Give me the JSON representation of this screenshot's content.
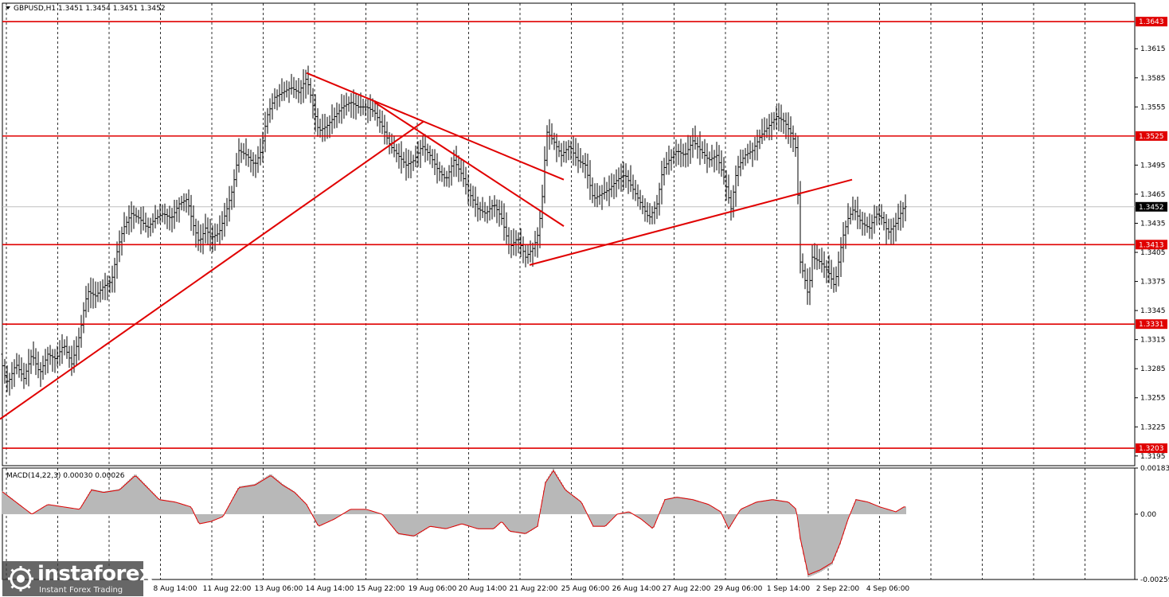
{
  "chart_data": {
    "type": "candlestick",
    "title": "GBPUSD,H1  1.3451 1.3454 1.3451 1.3452",
    "current_price": 1.3452,
    "ylim": [
      1.3185,
      1.3662
    ],
    "y_ticks": [
      "1.3615",
      "1.3585",
      "1.3555",
      "1.3495",
      "1.3465",
      "1.3435",
      "1.3405",
      "1.3375",
      "1.3345",
      "1.3315",
      "1.3285",
      "1.3255",
      "1.3225",
      "1.3195"
    ],
    "x_ticks": [
      "8 Aug 14:00",
      "11 Aug 22:00",
      "13 Aug 06:00",
      "14 Aug 14:00",
      "15 Aug 22:00",
      "19 Aug 06:00",
      "20 Aug 14:00",
      "21 Aug 22:00",
      "25 Aug 06:00",
      "26 Aug 14:00",
      "27 Aug 22:00",
      "29 Aug 06:00",
      "1 Sep 14:00",
      "2 Sep 22:00",
      "4 Sep 06:00"
    ],
    "levels": [
      {
        "value": 1.3643,
        "label": "1.3643"
      },
      {
        "value": 1.3525,
        "label": "1.3525"
      },
      {
        "value": 1.3413,
        "label": "1.3413"
      },
      {
        "value": 1.3331,
        "label": "1.3331"
      },
      {
        "value": 1.3203,
        "label": "1.3203"
      }
    ],
    "price_path": [
      [
        0,
        1.33
      ],
      [
        5,
        1.328
      ],
      [
        10,
        1.327
      ],
      [
        20,
        1.329
      ],
      [
        30,
        1.3275
      ],
      [
        40,
        1.33
      ],
      [
        50,
        1.328
      ],
      [
        60,
        1.33
      ],
      [
        70,
        1.3295
      ],
      [
        80,
        1.331
      ],
      [
        90,
        1.329
      ],
      [
        100,
        1.332
      ],
      [
        105,
        1.3345
      ],
      [
        110,
        1.3365
      ],
      [
        120,
        1.336
      ],
      [
        130,
        1.337
      ],
      [
        140,
        1.3375
      ],
      [
        148,
        1.341
      ],
      [
        155,
        1.343
      ],
      [
        165,
        1.3445
      ],
      [
        175,
        1.344
      ],
      [
        185,
        1.343
      ],
      [
        195,
        1.344
      ],
      [
        205,
        1.3445
      ],
      [
        215,
        1.344
      ],
      [
        225,
        1.3455
      ],
      [
        235,
        1.346
      ],
      [
        242,
        1.3435
      ],
      [
        250,
        1.3415
      ],
      [
        258,
        1.343
      ],
      [
        265,
        1.342
      ],
      [
        275,
        1.3425
      ],
      [
        285,
        1.345
      ],
      [
        292,
        1.347
      ],
      [
        300,
        1.351
      ],
      [
        310,
        1.3505
      ],
      [
        320,
        1.3495
      ],
      [
        328,
        1.351
      ],
      [
        335,
        1.3545
      ],
      [
        345,
        1.3565
      ],
      [
        355,
        1.357
      ],
      [
        365,
        1.3575
      ],
      [
        375,
        1.357
      ],
      [
        385,
        1.3585
      ],
      [
        392,
        1.356
      ],
      [
        400,
        1.353
      ],
      [
        410,
        1.3535
      ],
      [
        420,
        1.3545
      ],
      [
        430,
        1.3555
      ],
      [
        440,
        1.356
      ],
      [
        450,
        1.3555
      ],
      [
        460,
        1.3555
      ],
      [
        470,
        1.355
      ],
      [
        480,
        1.3535
      ],
      [
        490,
        1.3515
      ],
      [
        500,
        1.3505
      ],
      [
        510,
        1.3495
      ],
      [
        520,
        1.35
      ],
      [
        530,
        1.3515
      ],
      [
        540,
        1.3505
      ],
      [
        550,
        1.349
      ],
      [
        560,
        1.348
      ],
      [
        570,
        1.35
      ],
      [
        580,
        1.3485
      ],
      [
        590,
        1.3465
      ],
      [
        600,
        1.345
      ],
      [
        610,
        1.3445
      ],
      [
        620,
        1.3455
      ],
      [
        630,
        1.344
      ],
      [
        640,
        1.341
      ],
      [
        650,
        1.342
      ],
      [
        660,
        1.34
      ],
      [
        670,
        1.341
      ],
      [
        676,
        1.3425
      ],
      [
        682,
        1.347
      ],
      [
        686,
        1.353
      ],
      [
        695,
        1.352
      ],
      [
        705,
        1.3505
      ],
      [
        715,
        1.3515
      ],
      [
        725,
        1.35
      ],
      [
        735,
        1.3495
      ],
      [
        745,
        1.346
      ],
      [
        755,
        1.3465
      ],
      [
        765,
        1.347
      ],
      [
        775,
        1.348
      ],
      [
        785,
        1.3485
      ],
      [
        795,
        1.347
      ],
      [
        805,
        1.3455
      ],
      [
        815,
        1.344
      ],
      [
        825,
        1.3455
      ],
      [
        832,
        1.349
      ],
      [
        840,
        1.35
      ],
      [
        850,
        1.351
      ],
      [
        860,
        1.3505
      ],
      [
        870,
        1.352
      ],
      [
        880,
        1.351
      ],
      [
        890,
        1.35
      ],
      [
        900,
        1.3505
      ],
      [
        910,
        1.348
      ],
      [
        918,
        1.345
      ],
      [
        925,
        1.349
      ],
      [
        935,
        1.3505
      ],
      [
        945,
        1.351
      ],
      [
        955,
        1.3525
      ],
      [
        965,
        1.3535
      ],
      [
        975,
        1.3545
      ],
      [
        985,
        1.354
      ],
      [
        995,
        1.3525
      ],
      [
        1000,
        1.351
      ],
      [
        1005,
        1.3395
      ],
      [
        1010,
        1.338
      ],
      [
        1015,
        1.336
      ],
      [
        1020,
        1.34
      ],
      [
        1030,
        1.3395
      ],
      [
        1040,
        1.3385
      ],
      [
        1048,
        1.337
      ],
      [
        1053,
        1.3395
      ],
      [
        1058,
        1.342
      ],
      [
        1065,
        1.344
      ],
      [
        1072,
        1.345
      ],
      [
        1082,
        1.3435
      ],
      [
        1092,
        1.343
      ],
      [
        1100,
        1.3445
      ],
      [
        1108,
        1.344
      ],
      [
        1115,
        1.3425
      ],
      [
        1125,
        1.3435
      ],
      [
        1135,
        1.3452
      ]
    ],
    "trendlines": [
      {
        "from": [
          0,
          1.3233
        ],
        "to": [
          532,
          1.354
        ]
      },
      {
        "from": [
          385,
          1.359
        ],
        "to": [
          708,
          1.348
        ]
      },
      {
        "from": [
          470,
          1.356
        ],
        "to": [
          708,
          1.3432
        ]
      },
      {
        "from": [
          665,
          1.3392
        ],
        "to": [
          1070,
          1.348
        ]
      }
    ],
    "macd": {
      "label": "MACD(14,22,3) 0.00030 0.00026",
      "ylim": [
        -0.00259,
        0.00183
      ],
      "y_ticks": [
        "0.00183",
        "0.00",
        "-0.00259"
      ],
      "histogram": [
        [
          0,
          0.001
        ],
        [
          20,
          0.0005
        ],
        [
          40,
          0.0
        ],
        [
          60,
          0.0004
        ],
        [
          80,
          0.0003
        ],
        [
          100,
          0.0002
        ],
        [
          115,
          0.001
        ],
        [
          130,
          0.0009
        ],
        [
          150,
          0.001
        ],
        [
          170,
          0.0016
        ],
        [
          185,
          0.0011
        ],
        [
          200,
          0.0006
        ],
        [
          220,
          0.0005
        ],
        [
          240,
          0.0003
        ],
        [
          250,
          -0.0004
        ],
        [
          265,
          -0.0003
        ],
        [
          280,
          -0.0001
        ],
        [
          300,
          0.0011
        ],
        [
          320,
          0.0012
        ],
        [
          340,
          0.0016
        ],
        [
          355,
          0.0012
        ],
        [
          370,
          0.0009
        ],
        [
          385,
          0.0004
        ],
        [
          400,
          -0.0005
        ],
        [
          420,
          -0.0002
        ],
        [
          440,
          0.0002
        ],
        [
          460,
          0.0002
        ],
        [
          480,
          0.0
        ],
        [
          500,
          -0.0008
        ],
        [
          520,
          -0.0009
        ],
        [
          540,
          -0.0005
        ],
        [
          560,
          -0.0006
        ],
        [
          580,
          -0.0004
        ],
        [
          600,
          -0.0006
        ],
        [
          620,
          -0.0006
        ],
        [
          630,
          -0.0003
        ],
        [
          640,
          -0.0007
        ],
        [
          660,
          -0.0008
        ],
        [
          675,
          -0.0005
        ],
        [
          685,
          0.0013
        ],
        [
          695,
          0.0018
        ],
        [
          710,
          0.001
        ],
        [
          730,
          0.0005
        ],
        [
          745,
          -0.0005
        ],
        [
          760,
          -0.0005
        ],
        [
          775,
          0.0
        ],
        [
          790,
          0.0001
        ],
        [
          805,
          -0.0002
        ],
        [
          820,
          -0.0006
        ],
        [
          835,
          0.0006
        ],
        [
          850,
          0.0007
        ],
        [
          870,
          0.0006
        ],
        [
          890,
          0.0004
        ],
        [
          905,
          0.0001
        ],
        [
          915,
          -0.0006
        ],
        [
          930,
          0.0002
        ],
        [
          950,
          0.0005
        ],
        [
          970,
          0.0006
        ],
        [
          990,
          0.0005
        ],
        [
          1000,
          0.0002
        ],
        [
          1005,
          -0.001
        ],
        [
          1015,
          -0.0025
        ],
        [
          1030,
          -0.0023
        ],
        [
          1045,
          -0.002
        ],
        [
          1055,
          -0.0012
        ],
        [
          1065,
          -0.0002
        ],
        [
          1075,
          0.0006
        ],
        [
          1090,
          0.0005
        ],
        [
          1105,
          0.0003
        ],
        [
          1115,
          0.0002
        ],
        [
          1125,
          0.0001
        ],
        [
          1135,
          0.0003
        ]
      ]
    }
  },
  "logo": {
    "brand": "instaforex",
    "tagline": "Instant Forex Trading"
  }
}
